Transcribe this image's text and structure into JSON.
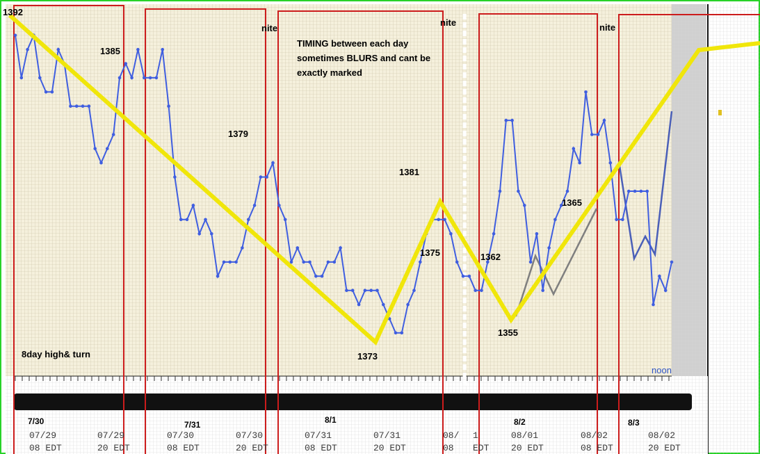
{
  "chart_data": {
    "type": "line",
    "xlabel": "",
    "ylabel": "",
    "ylim": [
      1368,
      1394
    ],
    "grid": true,
    "series": [
      {
        "values": [
          1392,
          1389,
          1391,
          1392,
          1389,
          1388,
          1388,
          1391,
          1390,
          1387,
          1387,
          1387,
          1387,
          1384,
          1383,
          1384,
          1385,
          1389,
          1390,
          1389,
          1391,
          1389,
          1389,
          1389,
          1391,
          1387,
          1382,
          1379,
          1379,
          1380,
          1378,
          1379,
          1378,
          1375,
          1376,
          1376,
          1376,
          1377,
          1379,
          1380,
          1382,
          1382,
          1383,
          1380,
          1379,
          1376,
          1377,
          1376,
          1376,
          1375,
          1375,
          1376,
          1376,
          1377,
          1374,
          1374,
          1373,
          1374,
          1374,
          1374,
          1373,
          1372,
          1371,
          1371,
          1373,
          1374,
          1376,
          1378,
          1379,
          1379,
          1379,
          1378,
          1376,
          1375,
          1375,
          1374,
          1374,
          1376,
          1378,
          1381,
          1386,
          1386,
          1381,
          1380,
          1376,
          1378,
          1374,
          1377,
          1379,
          1380,
          1381,
          1384,
          1383,
          1388,
          1385,
          1385,
          1386,
          1383,
          1379,
          1379,
          1381,
          1381,
          1381,
          1381,
          1373,
          1375,
          1374,
          1376
        ]
      }
    ],
    "annotations": [
      {
        "text": "1392"
      },
      {
        "text": "1385"
      },
      {
        "text": "1379"
      },
      {
        "text": "1373"
      },
      {
        "text": "1381"
      },
      {
        "text": "1375"
      },
      {
        "text": "1362"
      },
      {
        "text": "1365"
      },
      {
        "text": "1355"
      },
      {
        "text": "nite"
      },
      {
        "text": "nite"
      },
      {
        "text": "nite"
      },
      {
        "text": "TIMING between each day"
      },
      {
        "text": "sometimes BLURS and cant be"
      },
      {
        "text": "exactly marked"
      },
      {
        "text": "8day high& turn"
      },
      {
        "text": "noon"
      }
    ],
    "day_labels": [
      "7/30",
      "7/31",
      "8/1",
      "8/2",
      "8/3"
    ],
    "x_ticks": [
      {
        "date": "07/29",
        "time": "08 EDT"
      },
      {
        "date": "07/29",
        "time": "20 EDT"
      },
      {
        "date": "07/30",
        "time": "08 EDT"
      },
      {
        "date": "07/30",
        "time": "20 EDT"
      },
      {
        "date": "07/31",
        "time": "08 EDT"
      },
      {
        "date": "07/31",
        "time": "20 EDT"
      },
      {
        "date": "08/",
        "time": "08"
      },
      {
        "date": "1",
        "time": "EDT"
      },
      {
        "date": "08/01",
        "time": "20 EDT"
      },
      {
        "date": "08/02",
        "time": "08 EDT"
      },
      {
        "date": "08/02",
        "time": "20 EDT"
      }
    ],
    "colors": {
      "price": "#3f5ee0",
      "trend": "#f0e60a",
      "box": "#cc1c1c",
      "projection": "#7f7f7f",
      "grid_bg": "#f5f0dc",
      "frame": "#28d228"
    }
  }
}
